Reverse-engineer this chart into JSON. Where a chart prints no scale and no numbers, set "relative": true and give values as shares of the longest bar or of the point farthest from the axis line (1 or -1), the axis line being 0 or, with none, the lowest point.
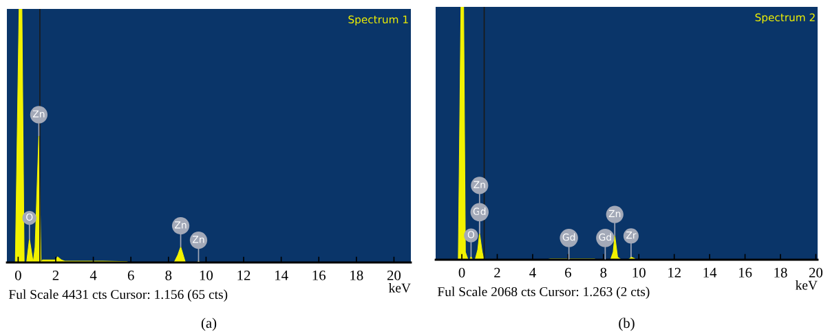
{
  "chart_data": [
    {
      "type": "area",
      "title": "Spectrum 1",
      "xlabel": "keV",
      "relative": true,
      "x": [
        -0.15,
        0.05,
        0.2,
        0.32,
        0.45,
        0.6,
        0.8,
        0.9,
        1.1,
        1.22,
        1.3,
        1.6,
        2.0,
        2.1,
        2.3,
        2.5,
        4.5,
        5.8,
        5.9,
        8.3,
        8.5,
        8.65,
        8.9,
        9.5,
        9.6,
        9.7,
        20
      ],
      "series": [
        {
          "color": "#f2f200",
          "values": [
            0,
            1,
            1,
            0,
            0,
            0.093,
            0,
            0.06,
            0.5,
            0,
            0.01,
            0.01,
            0.01,
            0.022,
            0.01,
            0.005,
            0.005,
            0.003,
            0,
            0,
            0.03,
            0.062,
            0,
            0,
            0.005,
            0,
            0
          ]
        }
      ],
      "xlim": [
        -0.6,
        20.9
      ],
      "xticks": [
        0,
        2,
        4,
        6,
        8,
        10,
        12,
        14,
        16,
        18,
        20
      ],
      "ref_lines": [
        {
          "axis": "x",
          "value": 1.156,
          "color": "#1a1a1a"
        }
      ],
      "annotations": [
        {
          "text": "O",
          "x": 0.6,
          "y": 0.093
        },
        {
          "text": "Zn",
          "x": 1.1,
          "y": 0.5
        },
        {
          "text": "Zn",
          "x": 8.65,
          "y": 0.062
        },
        {
          "text": "Zn",
          "x": 9.6,
          "y": 0.005
        },
        "Ful Scale 4431 cts Cursor: 1.156 (65 cts)",
        "(a)"
      ]
    },
    {
      "type": "area",
      "title": "Spectrum 2",
      "xlabel": "keV",
      "relative": true,
      "x": [
        -0.2,
        -0.05,
        0.1,
        0.2,
        0.35,
        0.45,
        0.52,
        0.6,
        0.75,
        0.9,
        1.0,
        1.15,
        1.25,
        4.8,
        5.0,
        7.5,
        7.6,
        8.4,
        8.55,
        8.64,
        8.8,
        9.0,
        9.4,
        9.5,
        9.56,
        9.75,
        9.8,
        20
      ],
      "series": [
        {
          "color": "#f2f200",
          "values": [
            0,
            1,
            1,
            0.03,
            0,
            0,
            0.013,
            0,
            0,
            0.04,
            0.105,
            0.03,
            0,
            0,
            0.003,
            0.003,
            0,
            0,
            0.03,
            0.096,
            0.01,
            0,
            0,
            0.005,
            0.011,
            0.005,
            0,
            0
          ]
        }
      ],
      "xlim": [
        -1.48,
        20.1
      ],
      "xticks": [
        0,
        2,
        4,
        6,
        8,
        10,
        12,
        14,
        16,
        18,
        20
      ],
      "ref_lines": [
        {
          "axis": "x",
          "value": 1.263,
          "color": "#1a1a1a"
        }
      ],
      "annotations": [
        {
          "text": "O",
          "x": 0.52,
          "y": 0.013
        },
        {
          "text": "Gd",
          "x": 1.0,
          "y": 0.105
        },
        {
          "text": "Zn",
          "x": 1.0,
          "y": 0.105
        },
        {
          "text": "Gd",
          "x": 6.05,
          "y": 0.003
        },
        {
          "text": "Gd",
          "x": 8.1,
          "y": 0.003
        },
        {
          "text": "Zn",
          "x": 8.64,
          "y": 0.096
        },
        {
          "text": "Zr",
          "x": 9.56,
          "y": 0.011
        },
        "Ful Scale 2068 cts Cursor: 1.263 (2 cts)",
        "(b)"
      ]
    }
  ]
}
